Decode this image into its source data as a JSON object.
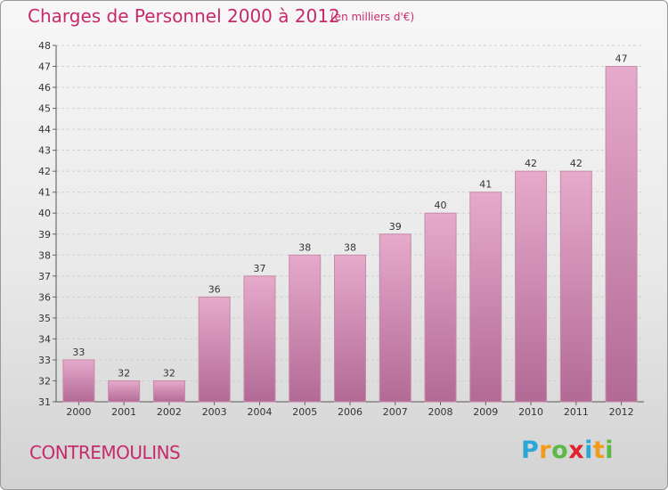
{
  "title": "Charges de Personnel 2000 à 2012",
  "subtitle": "(en milliers d'€)",
  "commune": "CONTREMOULINS",
  "brand": {
    "letters": [
      "P",
      "r",
      "o",
      "x",
      "i",
      "t",
      "i"
    ],
    "colors": [
      "#2aa7d8",
      "#f29a1c",
      "#5bb947",
      "#e0222d",
      "#2aa7d8",
      "#f29a1c",
      "#5bb947"
    ]
  },
  "colors": {
    "title": "#c72a6b",
    "bar_top": "#e6aacb",
    "bar_bottom": "#b26a95",
    "bar_edge": "#c78aaa"
  },
  "chart_data": {
    "type": "bar",
    "title": "Charges de Personnel 2000 à 2012",
    "subtitle": "(en milliers d'€)",
    "categories": [
      "2000",
      "2001",
      "2002",
      "2003",
      "2004",
      "2005",
      "2006",
      "2007",
      "2008",
      "2009",
      "2010",
      "2011",
      "2012"
    ],
    "values": [
      33,
      32,
      32,
      36,
      37,
      38,
      38,
      39,
      40,
      41,
      42,
      42,
      47
    ],
    "ylim": [
      31,
      48
    ],
    "yticks": [
      31,
      32,
      33,
      34,
      35,
      36,
      37,
      38,
      39,
      40,
      41,
      42,
      43,
      44,
      45,
      46,
      47,
      48
    ],
    "grid": true,
    "data_labels": true
  }
}
